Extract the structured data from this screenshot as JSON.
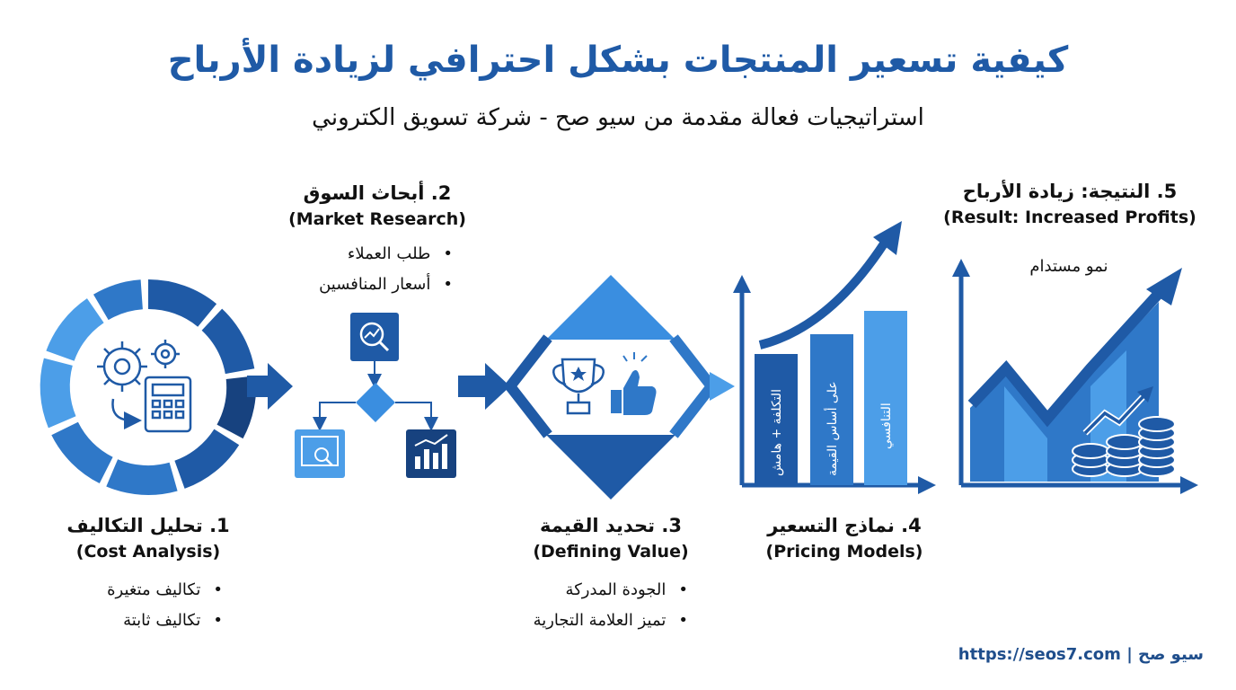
{
  "title": "كيفية تسعير المنتجات بشكل احترافي لزيادة الأرباح",
  "subtitle": "استراتيجيات فعالة مقدمة من سيو صح - شركة تسويق الكتروني",
  "colors": {
    "dark_blue": "#1f5aa6",
    "mid_blue": "#2f78c8",
    "light_blue": "#4c9ee8",
    "navy": "#17427f"
  },
  "steps": [
    {
      "heading_ar": "1. تحليل التكاليف",
      "heading_en": "(Cost Analysis)",
      "bullets": [
        "تكاليف متغيرة",
        "تكاليف ثابتة"
      ],
      "icons": [
        "gears-icon",
        "calculator-icon",
        "cycle-arrow-icon"
      ]
    },
    {
      "heading_ar": "2. أبحاث السوق",
      "heading_en": "(Market Research)",
      "bullets": [
        "طلب العملاء",
        "أسعار المنافسين"
      ],
      "icons": [
        "magnifier-chart-icon",
        "flow-diamond-icon",
        "browser-search-icon",
        "bar-chart-icon"
      ]
    },
    {
      "heading_ar": "3. تحديد القيمة",
      "heading_en": "(Defining Value)",
      "bullets": [
        "الجودة المدركة",
        "تميز العلامة التجارية"
      ],
      "icons": [
        "trophy-icon",
        "thumbs-up-icon"
      ]
    },
    {
      "heading_ar": "4. نماذج التسعير",
      "heading_en": "(Pricing Models)",
      "models": [
        "التكلفة + هامش",
        "على أساس القيمة",
        "التنافسي"
      ]
    },
    {
      "heading_ar": "5. النتيجة: زيادة الأرباح",
      "heading_en": "(Result: Increased Profits)",
      "growth_label": "نمو مستدام",
      "icons": [
        "coin-stacks-icon",
        "rising-arrow-icon"
      ]
    }
  ],
  "footer": "https://seos7.com | سيو صح"
}
